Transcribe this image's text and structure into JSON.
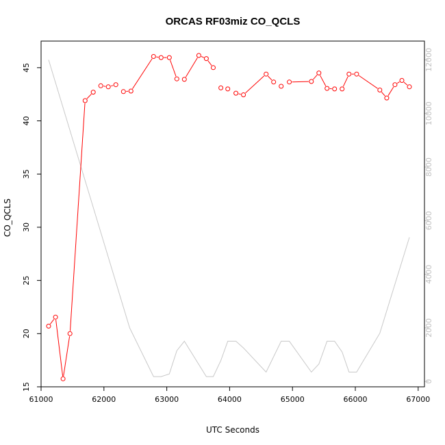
{
  "chart_data": {
    "type": "line",
    "title": "ORCAS RF03miz CO_QCLS",
    "xlabel": "UTC Seconds",
    "ylabel": "CO_QCLS",
    "y2label": "",
    "xlim": [
      61000,
      67100
    ],
    "ylim": [
      15,
      47.5
    ],
    "y2lim": [
      -200,
      12700
    ],
    "x_ticks": [
      61000,
      62000,
      63000,
      64000,
      65000,
      66000,
      67000
    ],
    "y_ticks": [
      15,
      20,
      25,
      30,
      35,
      40,
      45
    ],
    "y2_ticks": [
      0,
      2000,
      4000,
      6000,
      8000,
      10000,
      12000
    ],
    "grid": false,
    "series": [
      {
        "axis": "left",
        "color": "#ff0000",
        "marker": "open-circle",
        "points": [
          {
            "x": 61120,
            "y": 20.7
          },
          {
            "x": 61230,
            "y": 21.55
          },
          {
            "x": 61350,
            "y": 15.75
          },
          {
            "x": 61460,
            "y": 20.0
          },
          {
            "x": 61700,
            "y": 41.9
          },
          {
            "x": 61830,
            "y": 42.7
          },
          {
            "x": 61950,
            "y": 43.3
          },
          {
            "x": 62070,
            "y": 43.2
          },
          {
            "x": 62190,
            "y": 43.4
          },
          {
            "x": 62310,
            "y": 42.75
          },
          {
            "x": 62430,
            "y": 42.8
          },
          {
            "x": 62790,
            "y": 46.05
          },
          {
            "x": 62910,
            "y": 45.95
          },
          {
            "x": 63040,
            "y": 45.95
          },
          {
            "x": 63160,
            "y": 43.95
          },
          {
            "x": 63280,
            "y": 43.9
          },
          {
            "x": 63510,
            "y": 46.15
          },
          {
            "x": 63630,
            "y": 45.85
          },
          {
            "x": 63740,
            "y": 45.0
          },
          {
            "x": 63860,
            "y": 43.1
          },
          {
            "x": 63970,
            "y": 43.0
          },
          {
            "x": 64100,
            "y": 42.6
          },
          {
            "x": 64220,
            "y": 42.45
          },
          {
            "x": 64580,
            "y": 44.4
          },
          {
            "x": 64700,
            "y": 43.65
          },
          {
            "x": 64820,
            "y": 43.25
          },
          {
            "x": 64950,
            "y": 43.65
          },
          {
            "x": 65300,
            "y": 43.7
          },
          {
            "x": 65420,
            "y": 44.5
          },
          {
            "x": 65550,
            "y": 43.05
          },
          {
            "x": 65670,
            "y": 43.0
          },
          {
            "x": 65790,
            "y": 43.0
          },
          {
            "x": 65900,
            "y": 44.4
          },
          {
            "x": 66020,
            "y": 44.4
          },
          {
            "x": 66390,
            "y": 42.9
          },
          {
            "x": 66500,
            "y": 42.15
          },
          {
            "x": 66630,
            "y": 43.4
          },
          {
            "x": 66740,
            "y": 43.8
          },
          {
            "x": 66860,
            "y": 43.2
          }
        ],
        "breaks_after_x": [
          61830,
          62190,
          63160,
          63740,
          63860,
          63970,
          64700,
          64820,
          65670
        ]
      },
      {
        "axis": "right",
        "color": "#c8c8c8",
        "marker": "none",
        "points": [
          {
            "x": 61120,
            "y": 12000
          },
          {
            "x": 62410,
            "y": 2000
          },
          {
            "x": 62790,
            "y": 180
          },
          {
            "x": 62910,
            "y": 180
          },
          {
            "x": 63040,
            "y": 280
          },
          {
            "x": 63160,
            "y": 1150
          },
          {
            "x": 63280,
            "y": 1500
          },
          {
            "x": 63630,
            "y": 180
          },
          {
            "x": 63740,
            "y": 180
          },
          {
            "x": 63860,
            "y": 780
          },
          {
            "x": 63970,
            "y": 1500
          },
          {
            "x": 64100,
            "y": 1500
          },
          {
            "x": 64220,
            "y": 1250
          },
          {
            "x": 64580,
            "y": 350
          },
          {
            "x": 64820,
            "y": 1500
          },
          {
            "x": 64950,
            "y": 1500
          },
          {
            "x": 65300,
            "y": 350
          },
          {
            "x": 65420,
            "y": 650
          },
          {
            "x": 65550,
            "y": 1500
          },
          {
            "x": 65670,
            "y": 1500
          },
          {
            "x": 65790,
            "y": 1100
          },
          {
            "x": 65900,
            "y": 350
          },
          {
            "x": 66020,
            "y": 350
          },
          {
            "x": 66390,
            "y": 1800
          },
          {
            "x": 66860,
            "y": 5380
          }
        ]
      }
    ]
  }
}
